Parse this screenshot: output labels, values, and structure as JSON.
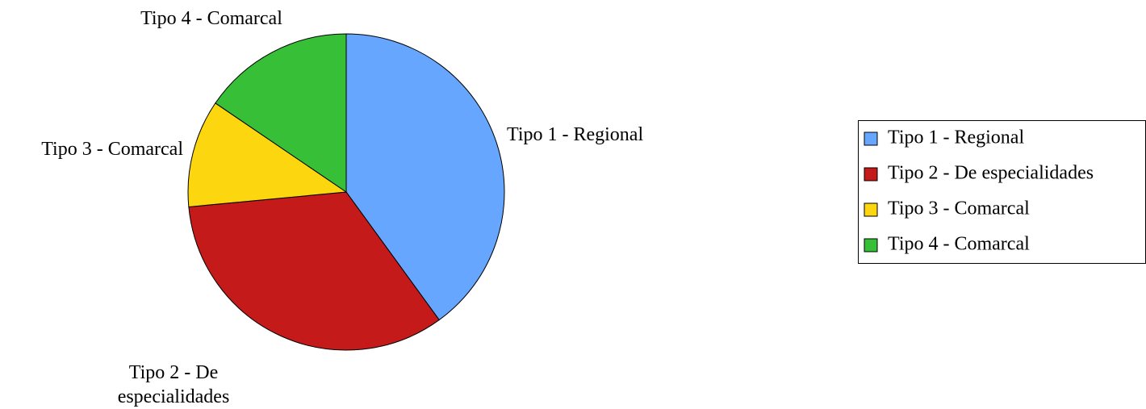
{
  "chart_data": {
    "type": "pie",
    "categories": [
      "Tipo 1 - Regional",
      "Tipo 2 - De especialidades",
      "Tipo 3 - Comarcal",
      "Tipo 4 - Comarcal"
    ],
    "values": [
      40,
      33.5,
      11,
      15.5
    ],
    "colors": [
      "#66a6ff",
      "#c41a1a",
      "#fcd60e",
      "#37bf37"
    ],
    "legend": "right"
  }
}
